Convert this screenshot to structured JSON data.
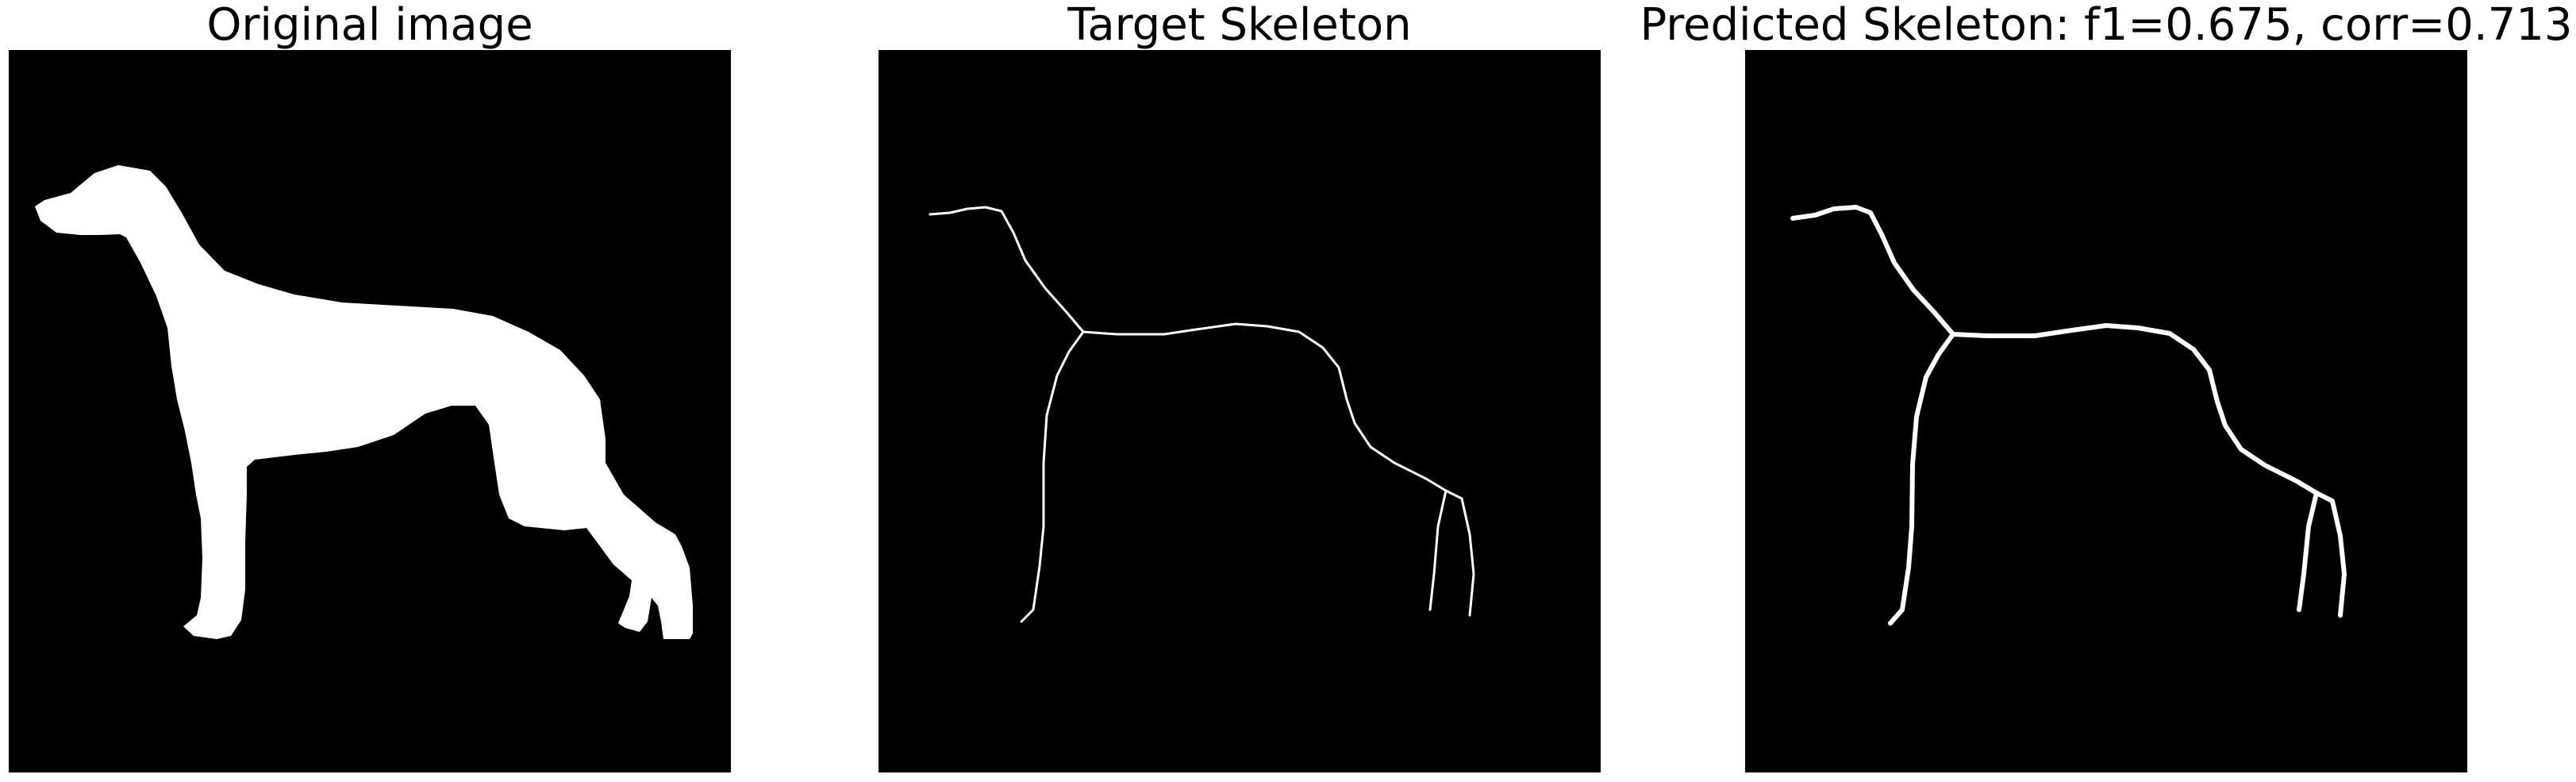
{
  "panels": [
    {
      "id": "original",
      "title": "Original image"
    },
    {
      "id": "target",
      "title": "Target Skeleton"
    },
    {
      "id": "predicted",
      "title": "Predicted Skeleton: f1=0.675, corr=0.713"
    }
  ],
  "colors": {
    "background": "#000000",
    "foreground": "#ffffff",
    "figure_bg": "#ffffff"
  },
  "content": "greyhound dog silhouette and its skeleton"
}
